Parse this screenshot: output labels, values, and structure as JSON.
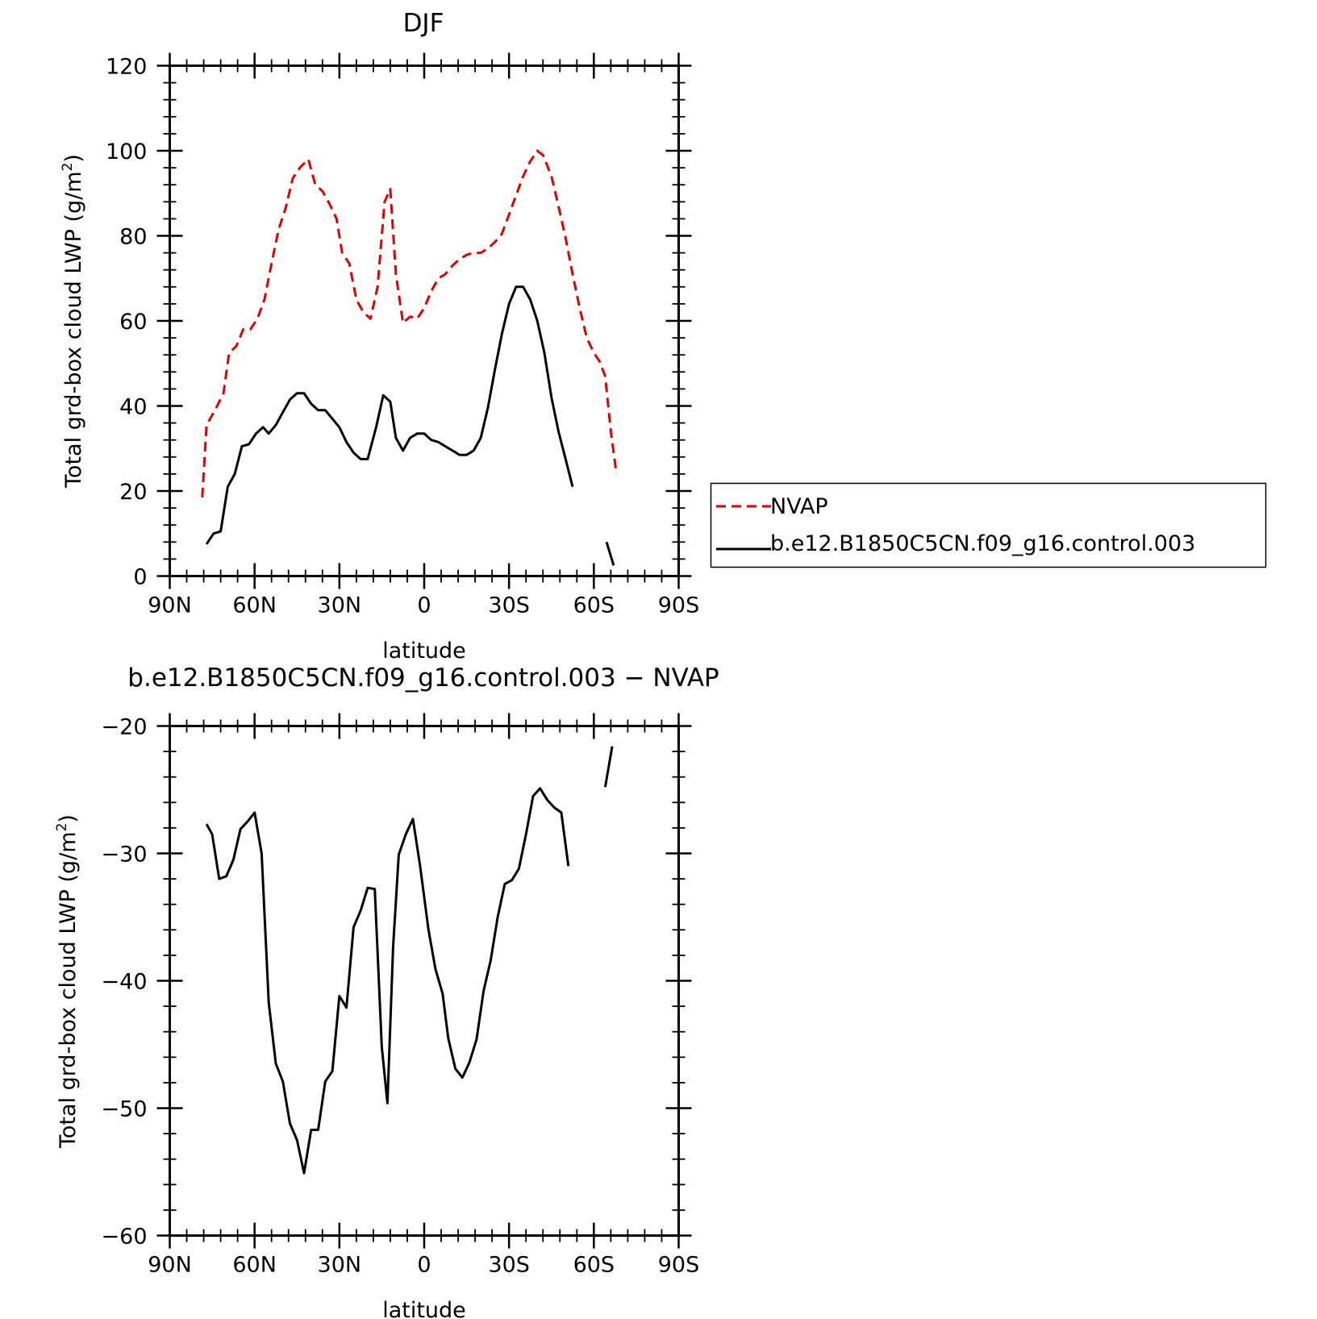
{
  "chart_data": [
    {
      "type": "line",
      "title": "DJF",
      "xlabel": "latitude",
      "ylabel": "Total grd-box cloud LWP (g/m²)",
      "ylabel_main": "Total grd-box cloud LWP (g/m",
      "ylabel_sup": "2",
      "ylabel_end": ")",
      "xlim": [
        90,
        -90
      ],
      "ylim": [
        0,
        120
      ],
      "yticks": [
        0,
        20,
        40,
        60,
        80,
        100,
        120
      ],
      "xticks": [
        90,
        60,
        30,
        0,
        -30,
        -60,
        -90
      ],
      "xtick_labels": [
        "90N",
        "60N",
        "30N",
        "0",
        "30S",
        "60S",
        "90S"
      ],
      "grid": false,
      "legend_position": "right",
      "series": [
        {
          "name": "NVAP",
          "color": "#e00000",
          "style": "dashed",
          "segments": [
            [
              [
                78.5,
                18.5
              ],
              [
                77,
                35.5
              ],
              [
                74,
                39
              ],
              [
                71,
                43
              ],
              [
                69,
                52.5
              ],
              [
                66.5,
                54
              ],
              [
                64,
                58
              ],
              [
                61.5,
                58
              ],
              [
                59,
                60.5
              ],
              [
                56.5,
                65
              ],
              [
                54,
                73.5
              ],
              [
                51.5,
                81.5
              ],
              [
                49,
                86.5
              ],
              [
                46.5,
                93.5
              ],
              [
                44,
                96
              ],
              [
                41,
                98
              ],
              [
                38.5,
                92
              ],
              [
                36,
                90.5
              ],
              [
                33.5,
                87.5
              ],
              [
                31,
                84
              ],
              [
                29,
                76
              ],
              [
                26.5,
                73.5
              ],
              [
                24,
                65
              ],
              [
                21.5,
                62
              ],
              [
                19,
                60.5
              ],
              [
                16.5,
                68
              ],
              [
                14,
                88
              ],
              [
                12,
                91
              ],
              [
                10,
                71
              ],
              [
                7.5,
                59.5
              ],
              [
                5,
                61
              ],
              [
                2.5,
                60.5
              ],
              [
                0,
                63
              ],
              [
                -2.5,
                67
              ],
              [
                -5,
                70
              ],
              [
                -7.5,
                71
              ],
              [
                -10,
                73
              ],
              [
                -12.5,
                74.5
              ],
              [
                -15,
                75.5
              ],
              [
                -17.5,
                76
              ],
              [
                -20,
                76
              ],
              [
                -22.5,
                77
              ],
              [
                -25,
                78.5
              ],
              [
                -27.5,
                80.5
              ],
              [
                -30,
                85
              ],
              [
                -32.5,
                89.5
              ],
              [
                -35,
                94
              ],
              [
                -37.5,
                97.5
              ],
              [
                -40,
                100
              ],
              [
                -42,
                99
              ],
              [
                -45,
                94
              ],
              [
                -47.5,
                87
              ],
              [
                -50,
                79.5
              ],
              [
                -52.5,
                71
              ],
              [
                -55,
                63
              ],
              [
                -57.5,
                56
              ],
              [
                -60,
                52.5
              ],
              [
                -62,
                50.5
              ],
              [
                -64,
                47
              ],
              [
                -66,
                34
              ],
              [
                -68,
                24
              ]
            ]
          ]
        },
        {
          "name": "b.e12.B1850C5CN.f09_g16.control.003",
          "color": "#000000",
          "style": "solid",
          "segments": [
            [
              [
                77,
                7.5
              ],
              [
                74.5,
                10
              ],
              [
                72,
                10.5
              ],
              [
                69.5,
                21
              ],
              [
                67,
                24
              ],
              [
                64.5,
                30.5
              ],
              [
                62,
                31
              ],
              [
                59.5,
                33.5
              ],
              [
                57,
                35
              ],
              [
                55,
                33.5
              ],
              [
                52.5,
                35.5
              ],
              [
                50,
                38.5
              ],
              [
                47.5,
                41.5
              ],
              [
                45,
                43
              ],
              [
                42.5,
                43
              ],
              [
                40,
                40.5
              ],
              [
                37.5,
                39
              ],
              [
                35,
                39
              ],
              [
                32.5,
                37
              ],
              [
                30,
                35
              ],
              [
                27.5,
                31.5
              ],
              [
                25,
                29
              ],
              [
                22.5,
                27.5
              ],
              [
                20,
                27.5
              ],
              [
                17,
                35
              ],
              [
                14.5,
                42.5
              ],
              [
                12,
                41
              ],
              [
                10,
                32.5
              ],
              [
                7.5,
                29.5
              ],
              [
                5,
                32.5
              ],
              [
                2.5,
                33.5
              ],
              [
                0,
                33.5
              ],
              [
                -2.5,
                32
              ],
              [
                -5,
                31.5
              ],
              [
                -7.5,
                30.5
              ],
              [
                -10,
                29.5
              ],
              [
                -12.5,
                28.5
              ],
              [
                -15,
                28.5
              ],
              [
                -17.5,
                29.5
              ],
              [
                -20,
                32.5
              ],
              [
                -22.5,
                39.5
              ],
              [
                -25,
                48.5
              ],
              [
                -27.5,
                57
              ],
              [
                -30,
                64
              ],
              [
                -32.5,
                68
              ],
              [
                -35,
                68
              ],
              [
                -37.5,
                65
              ],
              [
                -40,
                60
              ],
              [
                -42.5,
                52.5
              ],
              [
                -45,
                42
              ],
              [
                -47.5,
                34
              ],
              [
                -50,
                27.5
              ],
              [
                -52.5,
                21
              ]
            ],
            [
              [
                -64.5,
                8
              ],
              [
                -67,
                2.5
              ]
            ]
          ]
        }
      ]
    },
    {
      "type": "line",
      "title": "b.e12.B1850C5CN.f09_g16.control.003 − NVAP",
      "xlabel": "latitude",
      "ylabel": "Total grd-box cloud LWP (g/m²)",
      "ylabel_main": "Total grd-box cloud LWP (g/m",
      "ylabel_sup": "2",
      "ylabel_end": ")",
      "xlim": [
        90,
        -90
      ],
      "ylim": [
        -60,
        -20
      ],
      "yticks": [
        -60,
        -50,
        -40,
        -30,
        -20
      ],
      "ytick_labels": [
        "−60",
        "−50",
        "−40",
        "−30",
        "−20"
      ],
      "xticks": [
        90,
        60,
        30,
        0,
        -30,
        -60,
        -90
      ],
      "xtick_labels": [
        "90N",
        "60N",
        "30N",
        "0",
        "30S",
        "60S",
        "90S"
      ],
      "grid": false,
      "series": [
        {
          "color": "#000000",
          "style": "solid",
          "segments": [
            [
              [
                77,
                -27.7
              ],
              [
                75,
                -28.5
              ],
              [
                72.5,
                -32
              ],
              [
                70,
                -31.8
              ],
              [
                67.5,
                -30.5
              ],
              [
                65,
                -28.1
              ],
              [
                62.5,
                -27.5
              ],
              [
                60,
                -26.8
              ],
              [
                57.5,
                -30
              ],
              [
                55,
                -41.7
              ],
              [
                52.5,
                -46.5
              ],
              [
                50,
                -47.9
              ],
              [
                47.5,
                -51.2
              ],
              [
                45,
                -52.5
              ],
              [
                42.5,
                -55.1
              ],
              [
                40,
                -51.7
              ],
              [
                37.5,
                -51.7
              ],
              [
                35,
                -47.9
              ],
              [
                32.5,
                -47.1
              ],
              [
                30,
                -41.2
              ],
              [
                27.5,
                -42.1
              ],
              [
                25,
                -35.8
              ],
              [
                22.5,
                -34.5
              ],
              [
                20,
                -32.7
              ],
              [
                17.5,
                -32.8
              ],
              [
                15,
                -45.2
              ],
              [
                13,
                -49.6
              ],
              [
                11,
                -37.4
              ],
              [
                9,
                -30.1
              ],
              [
                6.5,
                -28.5
              ],
              [
                4,
                -27.3
              ],
              [
                1.5,
                -30.9
              ],
              [
                -1.5,
                -36
              ],
              [
                -4,
                -39.1
              ],
              [
                -6.5,
                -41
              ],
              [
                -8.5,
                -44.5
              ],
              [
                -11,
                -46.9
              ],
              [
                -13.5,
                -47.6
              ],
              [
                -16,
                -46.4
              ],
              [
                -18.5,
                -44.6
              ],
              [
                -21,
                -40.8
              ],
              [
                -23.5,
                -38.4
              ],
              [
                -26,
                -35
              ],
              [
                -28.5,
                -32.4
              ],
              [
                -31,
                -32.1
              ],
              [
                -33.5,
                -31.2
              ],
              [
                -36,
                -28.5
              ],
              [
                -38.5,
                -25.5
              ],
              [
                -41,
                -24.9
              ],
              [
                -43.5,
                -25.8
              ],
              [
                -46,
                -26.4
              ],
              [
                -48.5,
                -26.8
              ],
              [
                -51,
                -31
              ]
            ],
            [
              [
                -64,
                -24.8
              ],
              [
                -66.5,
                -21.6
              ]
            ]
          ]
        }
      ]
    }
  ]
}
